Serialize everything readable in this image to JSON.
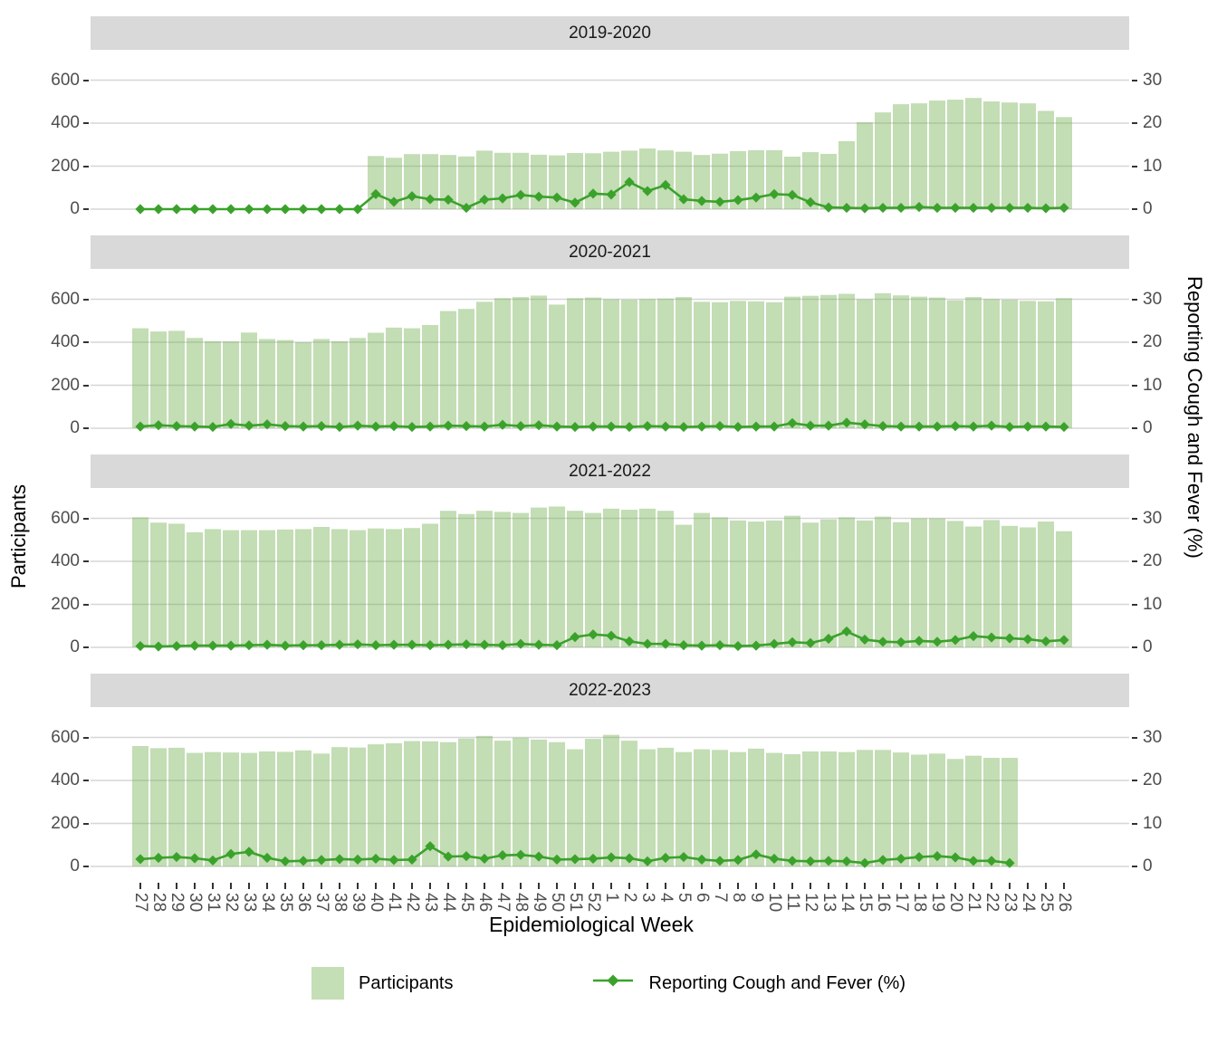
{
  "figure": {
    "y_left_title": "Participants",
    "y_right_title": "Reporting Cough and Fever (%)",
    "x_title": "Epidemiological Week"
  },
  "legend": {
    "participants_label": "Participants",
    "line_label": "Reporting Cough and Fever (%)"
  },
  "colors": {
    "bar_fill": "rgba(111,175,77,0.42)",
    "bar_fill_solid": "#c6e2b8",
    "line": "#3aa22b",
    "grid": "#d6d6d6",
    "strip_bg": "#d9d9d9",
    "axis_text": "#4d4d4d",
    "tick": "#333333"
  },
  "chart_data": {
    "type": "bar",
    "subtype": "faceted dual-axis bar + line",
    "x_label": "Epidemiological Week",
    "categories": [
      "27",
      "28",
      "29",
      "30",
      "31",
      "32",
      "33",
      "34",
      "35",
      "36",
      "37",
      "38",
      "39",
      "40",
      "41",
      "42",
      "43",
      "44",
      "45",
      "46",
      "47",
      "48",
      "49",
      "50",
      "51",
      "52",
      "1",
      "2",
      "3",
      "4",
      "5",
      "6",
      "7",
      "8",
      "9",
      "10",
      "11",
      "12",
      "13",
      "14",
      "15",
      "16",
      "17",
      "18",
      "19",
      "20",
      "21",
      "22",
      "23",
      "24",
      "25",
      "26"
    ],
    "y_left": {
      "label": "Participants",
      "ticks": [
        600,
        400,
        200,
        0
      ],
      "range": [
        0,
        660
      ]
    },
    "y_right": {
      "label": "Reporting Cough and Fever (%)",
      "ticks": [
        30,
        20,
        10,
        0
      ],
      "range": [
        0,
        33
      ]
    },
    "grid": "horizontal-major-only",
    "legend_position": "bottom",
    "facets": [
      {
        "title": "2019-2020",
        "participants": [
          null,
          null,
          null,
          null,
          null,
          null,
          null,
          null,
          null,
          null,
          null,
          null,
          null,
          247,
          239,
          256,
          256,
          252,
          245,
          272,
          262,
          262,
          253,
          250,
          261,
          260,
          267,
          272,
          282,
          273,
          267,
          252,
          258,
          270,
          274,
          274,
          244,
          265,
          257,
          316,
          404,
          450,
          488,
          492,
          505,
          509,
          517,
          501,
          496,
          492,
          457,
          428
        ],
        "pct": [
          0,
          0,
          0,
          0,
          0,
          0,
          0,
          0,
          0,
          0,
          0,
          0,
          0,
          3.5,
          1.7,
          3.0,
          2.3,
          2.2,
          0.3,
          2.2,
          2.5,
          3.3,
          2.9,
          2.7,
          1.5,
          3.6,
          3.4,
          6.3,
          4.2,
          5.6,
          2.3,
          1.9,
          1.7,
          2.1,
          2.7,
          3.5,
          3.3,
          1.6,
          0.4,
          0.3,
          0.2,
          0.3,
          0.3,
          0.5,
          0.3,
          0.3,
          0.3,
          0.3,
          0.3,
          0.3,
          0.2,
          0.3
        ]
      },
      {
        "title": "2020-2021",
        "participants": [
          465,
          450,
          453,
          420,
          405,
          404,
          445,
          415,
          410,
          400,
          415,
          405,
          420,
          444,
          468,
          465,
          480,
          545,
          555,
          588,
          605,
          610,
          617,
          575,
          605,
          608,
          600,
          598,
          601,
          603,
          610,
          588,
          586,
          592,
          590,
          586,
          612,
          616,
          620,
          625,
          600,
          628,
          618,
          612,
          608,
          595,
          610,
          601,
          598,
          592,
          590,
          605
        ],
        "pct": [
          0.4,
          0.7,
          0.5,
          0.4,
          0.3,
          1.0,
          0.6,
          0.9,
          0.5,
          0.4,
          0.5,
          0.3,
          0.6,
          0.4,
          0.5,
          0.3,
          0.4,
          0.6,
          0.5,
          0.4,
          0.8,
          0.5,
          0.7,
          0.4,
          0.3,
          0.4,
          0.4,
          0.3,
          0.5,
          0.4,
          0.3,
          0.4,
          0.5,
          0.3,
          0.4,
          0.4,
          1.2,
          0.6,
          0.6,
          1.3,
          0.9,
          0.5,
          0.4,
          0.4,
          0.4,
          0.5,
          0.4,
          0.6,
          0.3,
          0.4,
          0.4,
          0.3
        ]
      },
      {
        "title": "2021-2022",
        "participants": [
          605,
          580,
          575,
          535,
          550,
          545,
          545,
          545,
          548,
          550,
          560,
          550,
          545,
          553,
          550,
          555,
          575,
          635,
          620,
          635,
          630,
          625,
          650,
          655,
          635,
          625,
          645,
          640,
          645,
          635,
          570,
          625,
          605,
          590,
          585,
          590,
          612,
          580,
          595,
          605,
          590,
          608,
          582,
          600,
          600,
          588,
          562,
          592,
          565,
          558,
          585,
          540
        ],
        "pct": [
          0.3,
          0.2,
          0.3,
          0.4,
          0.4,
          0.4,
          0.5,
          0.6,
          0.4,
          0.5,
          0.5,
          0.6,
          0.7,
          0.5,
          0.6,
          0.6,
          0.5,
          0.6,
          0.7,
          0.6,
          0.5,
          0.8,
          0.6,
          0.5,
          2.4,
          3.0,
          2.7,
          1.4,
          0.8,
          0.8,
          0.5,
          0.4,
          0.5,
          0.3,
          0.4,
          0.8,
          1.2,
          1.0,
          2.0,
          3.7,
          1.8,
          1.3,
          1.2,
          1.5,
          1.3,
          1.7,
          2.6,
          2.3,
          2.1,
          1.9,
          1.4,
          1.7
        ]
      },
      {
        "title": "2022-2023",
        "participants": [
          560,
          550,
          552,
          528,
          532,
          530,
          528,
          535,
          533,
          540,
          525,
          555,
          553,
          568,
          573,
          583,
          582,
          578,
          595,
          607,
          585,
          599,
          590,
          578,
          545,
          593,
          612,
          585,
          545,
          552,
          532,
          545,
          542,
          532,
          548,
          528,
          522,
          535,
          535,
          532,
          542,
          542,
          530,
          520,
          525,
          500,
          515,
          505,
          505,
          null,
          null,
          null
        ],
        "pct": [
          1.7,
          2.0,
          2.2,
          1.9,
          1.4,
          2.9,
          3.4,
          2.0,
          1.2,
          1.3,
          1.5,
          1.7,
          1.6,
          1.8,
          1.5,
          1.6,
          4.7,
          2.3,
          2.4,
          1.8,
          2.6,
          2.7,
          2.3,
          1.6,
          1.7,
          1.8,
          2.1,
          1.9,
          1.2,
          2.0,
          2.2,
          1.6,
          1.3,
          1.5,
          2.8,
          1.8,
          1.3,
          1.2,
          1.3,
          1.2,
          0.8,
          1.5,
          1.8,
          2.2,
          2.4,
          2.1,
          1.3,
          1.3,
          0.8,
          null,
          null,
          null
        ]
      }
    ]
  }
}
